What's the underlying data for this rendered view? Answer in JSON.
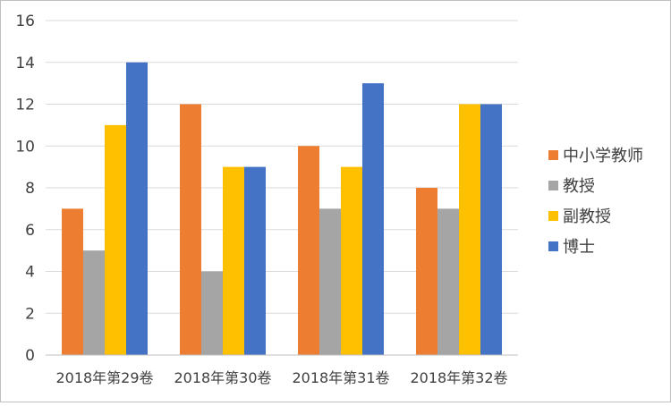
{
  "chart_data": {
    "type": "bar",
    "title": "",
    "xlabel": "",
    "ylabel": "",
    "categories": [
      "2018年第29卷",
      "2018年第30卷",
      "2018年第31卷",
      "2018年第32卷"
    ],
    "ylim": [
      0,
      16
    ],
    "yticks": [
      0,
      2,
      4,
      6,
      8,
      10,
      12,
      14,
      16
    ],
    "grid": true,
    "legend_position": "right",
    "series": [
      {
        "name": "中小学教师",
        "color": "#ED7D31",
        "values": [
          7,
          12,
          10,
          8
        ]
      },
      {
        "name": "教授",
        "color": "#A5A5A5",
        "values": [
          5,
          4,
          7,
          7
        ]
      },
      {
        "name": "副教授",
        "color": "#FFC000",
        "values": [
          11,
          9,
          9,
          12
        ]
      },
      {
        "name": "博士",
        "color": "#4472C4",
        "values": [
          14,
          9,
          13,
          12
        ]
      }
    ]
  }
}
